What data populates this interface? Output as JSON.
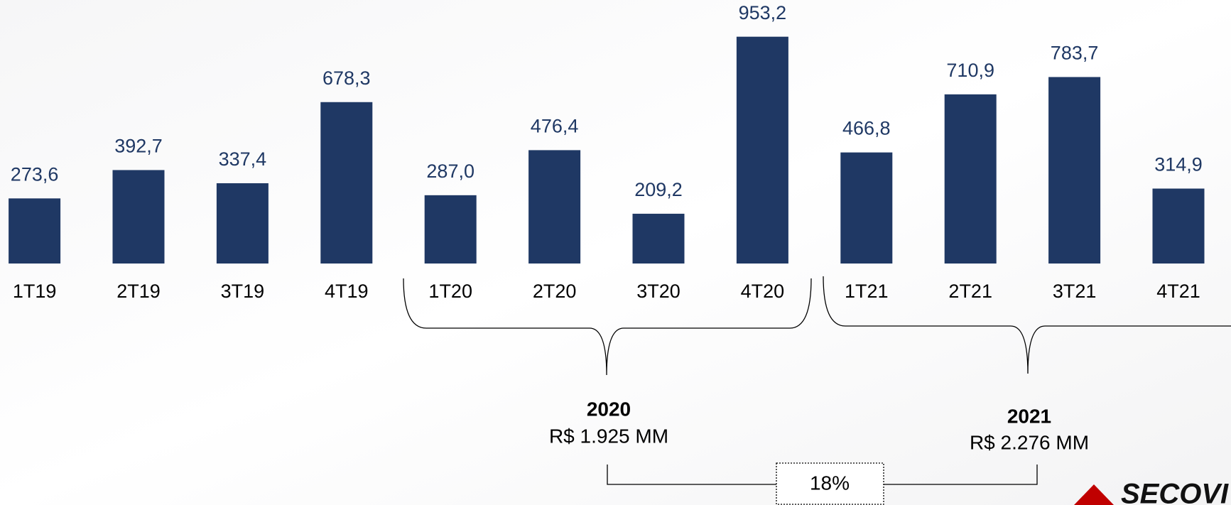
{
  "chart_data": {
    "type": "bar",
    "categories": [
      "1T19",
      "2T19",
      "3T19",
      "4T19",
      "1T20",
      "2T20",
      "3T20",
      "4T20",
      "1T21",
      "2T21",
      "3T21",
      "4T21"
    ],
    "values": [
      273.6,
      392.7,
      337.4,
      678.3,
      287.0,
      476.4,
      209.2,
      953.2,
      466.8,
      710.9,
      783.7,
      314.9
    ],
    "value_labels": [
      "273,6",
      "392,7",
      "337,4",
      "678,3",
      "287,0",
      "476,4",
      "209,2",
      "953,2",
      "466,8",
      "710,9",
      "783,7",
      "314,9"
    ],
    "color": "#1f3864",
    "annotations": [
      {
        "title": "2020",
        "text": "R$ 1.925 MM"
      },
      {
        "title": "2021",
        "text": "R$ 2.276 MM"
      },
      {
        "text": "18%"
      }
    ],
    "logo": "SECOVI"
  }
}
